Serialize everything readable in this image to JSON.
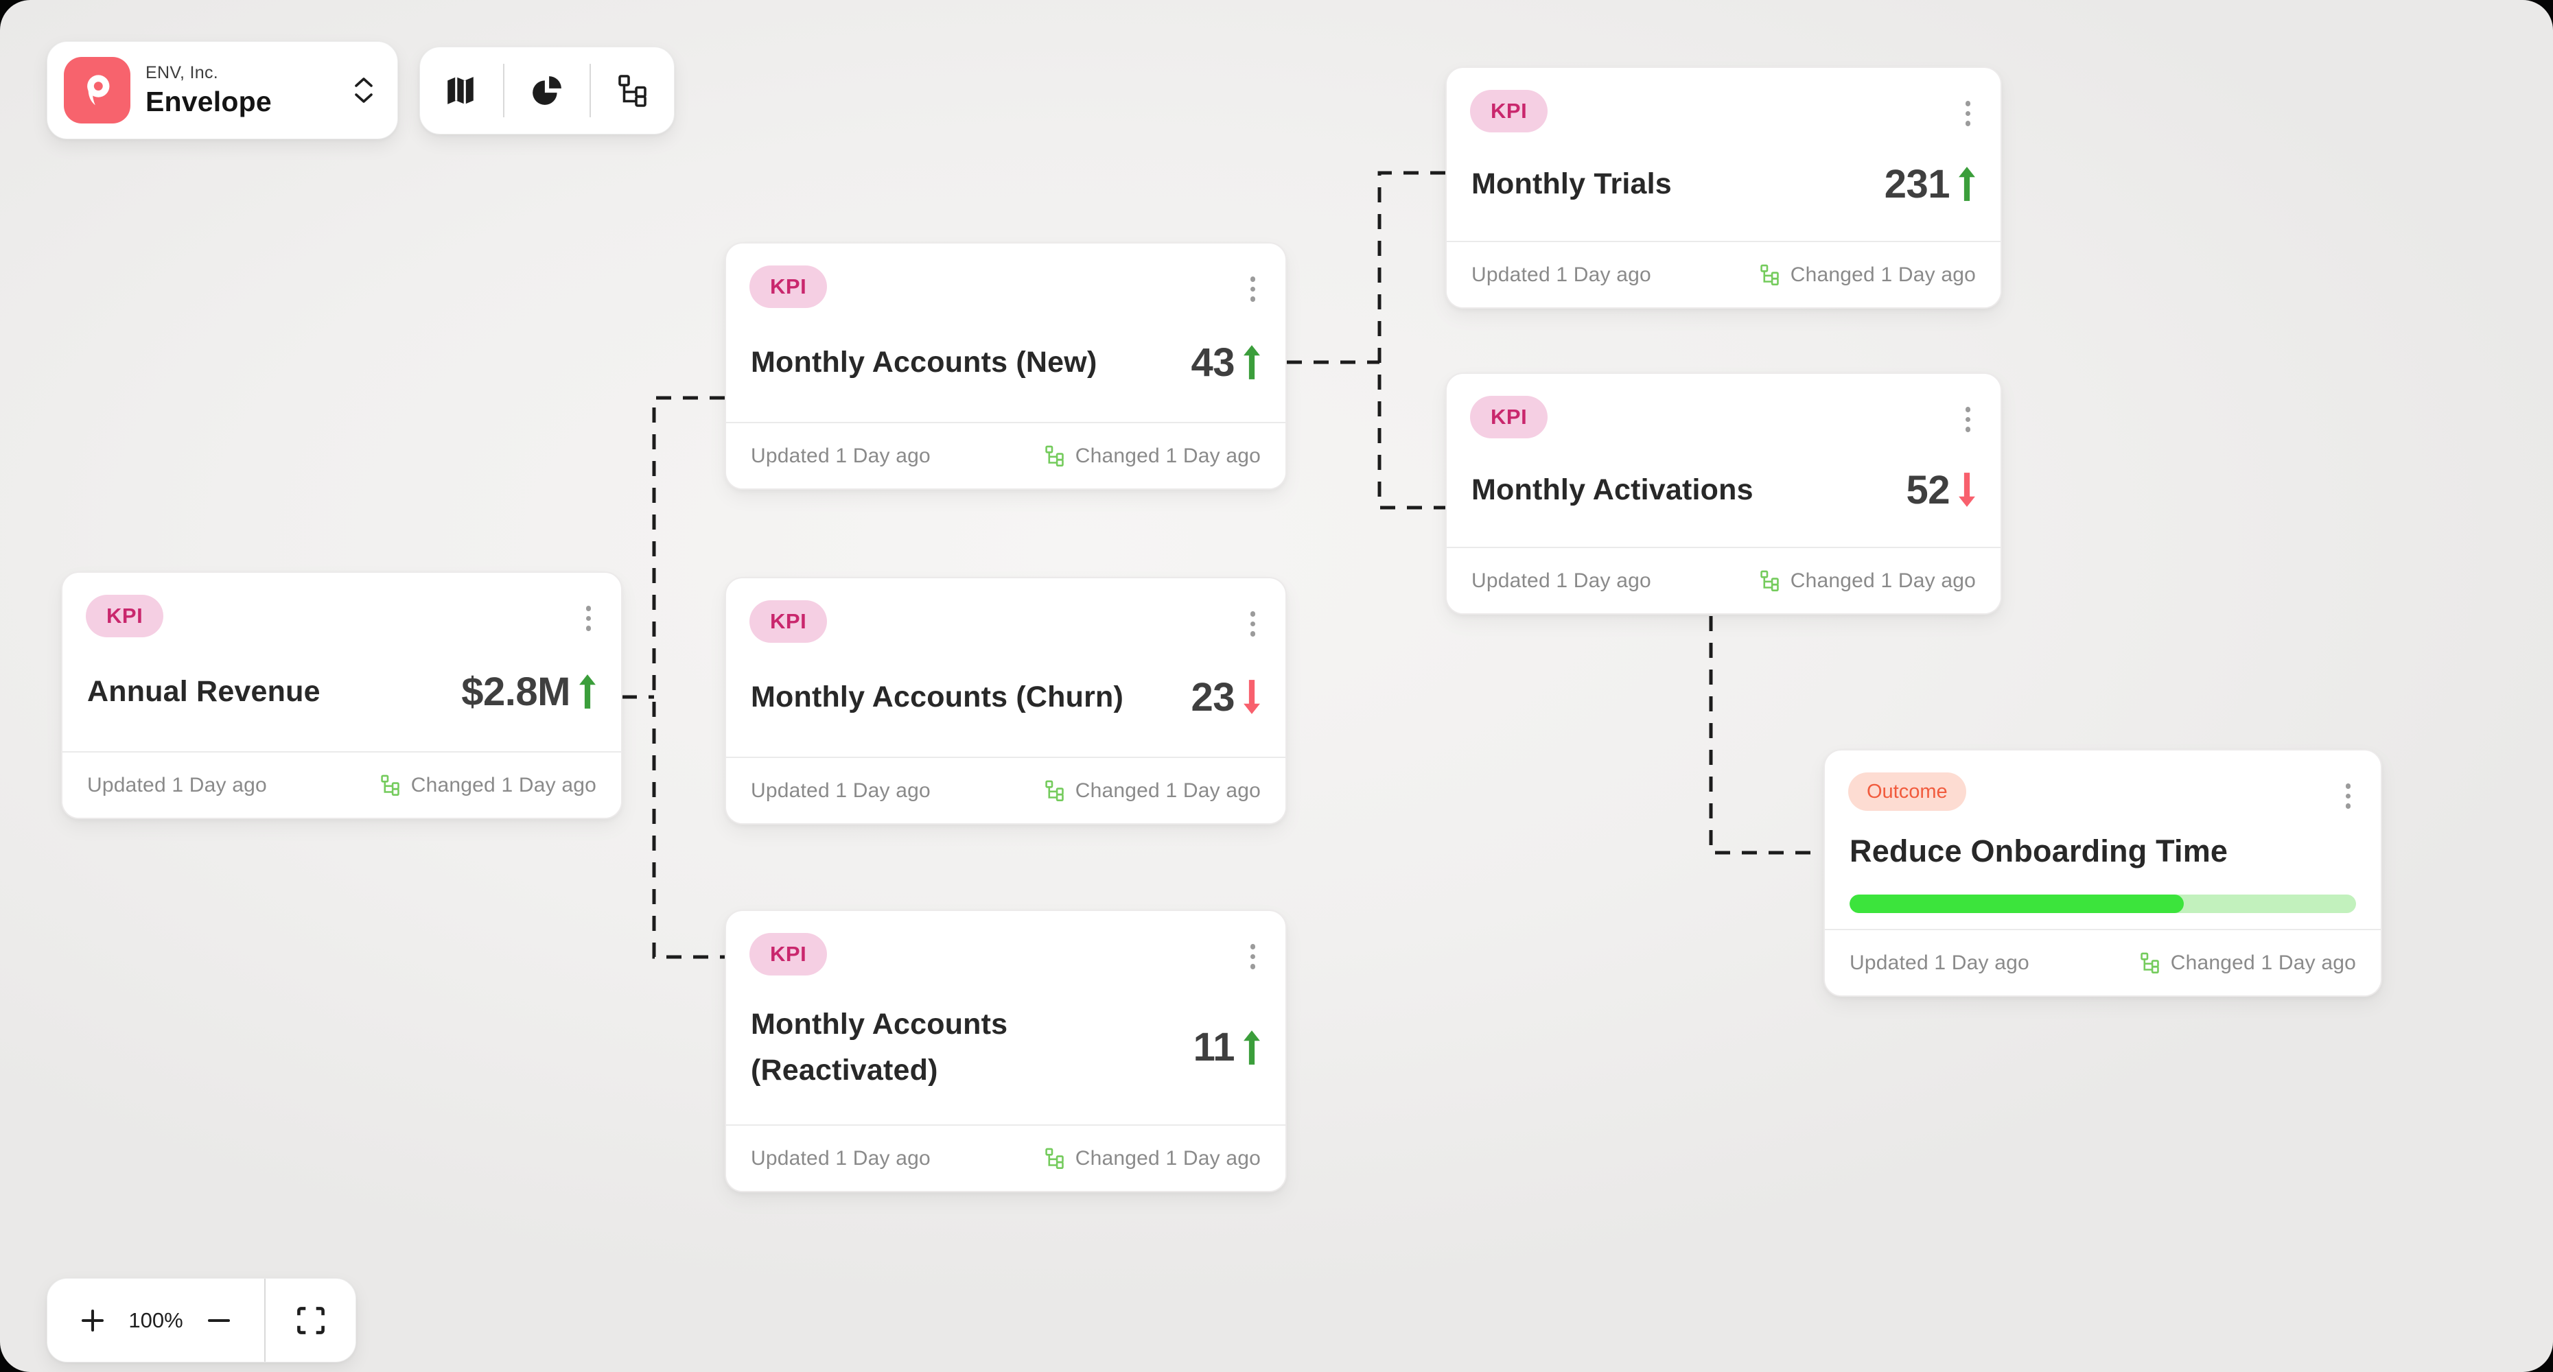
{
  "window": {
    "zoom_level": "100%"
  },
  "header": {
    "company": "ENV, Inc.",
    "workspace": "Envelope",
    "logo_color": "#f7636d"
  },
  "toolbar": {
    "icons": [
      "map",
      "pie-chart",
      "hierarchy"
    ]
  },
  "cards": [
    {
      "id": "annual-revenue",
      "badge": "KPI",
      "title": "Annual Revenue",
      "value": "$2.8M",
      "trend": "up"
    },
    {
      "id": "monthly-accounts-new",
      "badge": "KPI",
      "title": "Monthly Accounts (New)",
      "value": "43",
      "trend": "up"
    },
    {
      "id": "monthly-accounts-churn",
      "badge": "KPI",
      "title": "Monthly Accounts (Churn)",
      "value": "23",
      "trend": "down"
    },
    {
      "id": "monthly-accounts-reactivated",
      "badge": "KPI",
      "title": "Monthly Accounts (Reactivated)",
      "value": "11",
      "trend": "up"
    },
    {
      "id": "monthly-trials",
      "badge": "KPI",
      "title": "Monthly Trials",
      "value": "231",
      "trend": "up"
    },
    {
      "id": "monthly-activations",
      "badge": "KPI",
      "title": "Monthly Activations",
      "value": "52",
      "trend": "down"
    },
    {
      "id": "reduce-onboarding-time",
      "badge": "Outcome",
      "title": "Reduce Onboarding Time",
      "progress_percent": 66
    }
  ],
  "footer": {
    "updated": "Updated 1 Day ago",
    "changed": "Changed 1 Day ago"
  },
  "zoom_controls": {
    "zoom_in": "+",
    "zoom_level": "100%",
    "zoom_out": "−"
  },
  "connections": [
    [
      "annual-revenue",
      "monthly-accounts-new"
    ],
    [
      "annual-revenue",
      "monthly-accounts-churn"
    ],
    [
      "annual-revenue",
      "monthly-accounts-reactivated"
    ],
    [
      "monthly-accounts-new",
      "monthly-trials"
    ],
    [
      "monthly-accounts-new",
      "monthly-activations"
    ],
    [
      "monthly-activations",
      "reduce-onboarding-time"
    ]
  ],
  "colors": {
    "kpi_badge_bg": "#f5cfe3",
    "kpi_badge_text": "#c9276d",
    "outcome_badge_bg": "#fddcd2",
    "outcome_badge_text": "#f15b3d",
    "trend_up": "#3b9e3b",
    "trend_down": "#f8606d",
    "progress_fill": "#3ce43c",
    "progress_track": "#c2f1bd",
    "changed_icon": "#74cb5c",
    "logo": "#f7636d",
    "connector": "#1c1c1c",
    "canvas_bg": "#f1f0ef"
  }
}
